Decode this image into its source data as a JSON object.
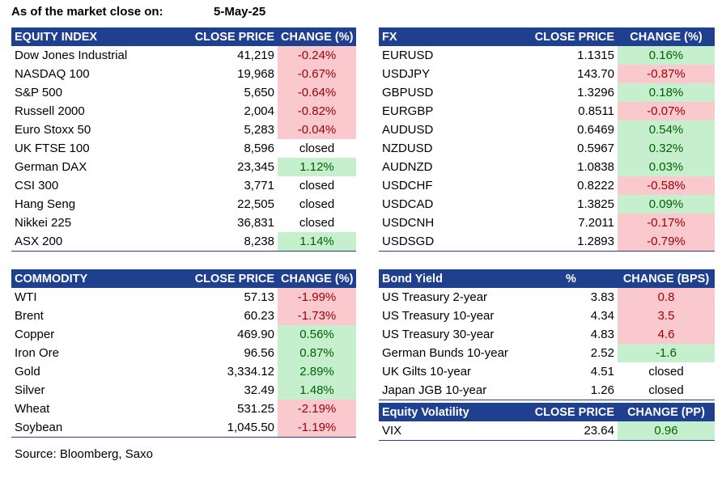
{
  "header": {
    "label": "As of the market close on:",
    "date": "5-May-25"
  },
  "equity": {
    "headers": [
      "EQUITY INDEX",
      "CLOSE PRICE",
      "CHANGE (%)"
    ],
    "rows": [
      {
        "name": "Dow Jones Industrial",
        "price": "41,219",
        "change": "-0.24%",
        "status": "neg"
      },
      {
        "name": "NASDAQ 100",
        "price": "19,968",
        "change": "-0.67%",
        "status": "neg"
      },
      {
        "name": "S&P 500",
        "price": "5,650",
        "change": "-0.64%",
        "status": "neg"
      },
      {
        "name": "Russell 2000",
        "price": "2,004",
        "change": "-0.82%",
        "status": "neg"
      },
      {
        "name": "Euro Stoxx 50",
        "price": "5,283",
        "change": "-0.04%",
        "status": "neg"
      },
      {
        "name": "UK FTSE 100",
        "price": "8,596",
        "change": "closed",
        "status": "neu"
      },
      {
        "name": "German DAX",
        "price": "23,345",
        "change": "1.12%",
        "status": "pos"
      },
      {
        "name": "CSI 300",
        "price": "3,771",
        "change": "closed",
        "status": "neu"
      },
      {
        "name": "Hang Seng",
        "price": "22,505",
        "change": "closed",
        "status": "neu"
      },
      {
        "name": "Nikkei 225",
        "price": "36,831",
        "change": "closed",
        "status": "neu"
      },
      {
        "name": "ASX 200",
        "price": "8,238",
        "change": "1.14%",
        "status": "pos"
      }
    ]
  },
  "fx": {
    "headers": [
      "FX",
      "CLOSE PRICE",
      "CHANGE (%)"
    ],
    "rows": [
      {
        "name": "EURUSD",
        "price": "1.1315",
        "change": "0.16%",
        "status": "pos"
      },
      {
        "name": "USDJPY",
        "price": "143.70",
        "change": "-0.87%",
        "status": "neg"
      },
      {
        "name": "GBPUSD",
        "price": "1.3296",
        "change": "0.18%",
        "status": "pos"
      },
      {
        "name": "EURGBP",
        "price": "0.8511",
        "change": "-0.07%",
        "status": "neg"
      },
      {
        "name": "AUDUSD",
        "price": "0.6469",
        "change": "0.54%",
        "status": "pos"
      },
      {
        "name": "NZDUSD",
        "price": "0.5967",
        "change": "0.32%",
        "status": "pos"
      },
      {
        "name": "AUDNZD",
        "price": "1.0838",
        "change": "0.03%",
        "status": "pos"
      },
      {
        "name": "USDCHF",
        "price": "0.8222",
        "change": "-0.58%",
        "status": "neg"
      },
      {
        "name": "USDCAD",
        "price": "1.3825",
        "change": "0.09%",
        "status": "pos"
      },
      {
        "name": "USDCNH",
        "price": "7.2011",
        "change": "-0.17%",
        "status": "neg"
      },
      {
        "name": "USDSGD",
        "price": "1.2893",
        "change": "-0.79%",
        "status": "neg"
      }
    ]
  },
  "commodity": {
    "headers": [
      "COMMODITY",
      "CLOSE PRICE",
      "CHANGE (%)"
    ],
    "rows": [
      {
        "name": "WTI",
        "price": "57.13",
        "change": "-1.99%",
        "status": "neg"
      },
      {
        "name": "Brent",
        "price": "60.23",
        "change": "-1.73%",
        "status": "neg"
      },
      {
        "name": "Copper",
        "price": "469.90",
        "change": "0.56%",
        "status": "pos"
      },
      {
        "name": "Iron Ore",
        "price": "96.56",
        "change": "0.87%",
        "status": "pos"
      },
      {
        "name": "Gold",
        "price": "3,334.12",
        "change": "2.89%",
        "status": "pos"
      },
      {
        "name": "Silver",
        "price": "32.49",
        "change": "1.48%",
        "status": "pos"
      },
      {
        "name": "Wheat",
        "price": "531.25",
        "change": "-2.19%",
        "status": "neg"
      },
      {
        "name": "Soybean",
        "price": "1,045.50",
        "change": "-1.19%",
        "status": "neg"
      }
    ]
  },
  "bond": {
    "headers": [
      "Bond Yield",
      "%",
      "CHANGE (BPS)"
    ],
    "rows": [
      {
        "name": "US Treasury 2-year",
        "price": "3.83",
        "change": "0.8",
        "status": "neg"
      },
      {
        "name": "US Treasury 10-year",
        "price": "4.34",
        "change": "3.5",
        "status": "neg"
      },
      {
        "name": "US Treasury 30-year",
        "price": "4.83",
        "change": "4.6",
        "status": "neg"
      },
      {
        "name": "German Bunds 10-year",
        "price": "2.52",
        "change": "-1.6",
        "status": "pos"
      },
      {
        "name": "UK Gilts 10-year",
        "price": "4.51",
        "change": "closed",
        "status": "neu"
      },
      {
        "name": "Japan JGB 10-year",
        "price": "1.26",
        "change": "closed",
        "status": "neu"
      }
    ]
  },
  "volatility": {
    "headers": [
      "Equity Volatility",
      "CLOSE PRICE",
      "CHANGE (PP)"
    ],
    "rows": [
      {
        "name": "VIX",
        "price": "23.64",
        "change": "0.96",
        "status": "pos"
      }
    ]
  },
  "footer": {
    "source": "Source: Bloomberg, Saxo"
  },
  "colors": {
    "header_bg": "#1f3f8f",
    "neg_bg": "#f9c9ce",
    "neg_text": "#9c0006",
    "pos_bg": "#c6efce",
    "pos_text": "#006100"
  }
}
